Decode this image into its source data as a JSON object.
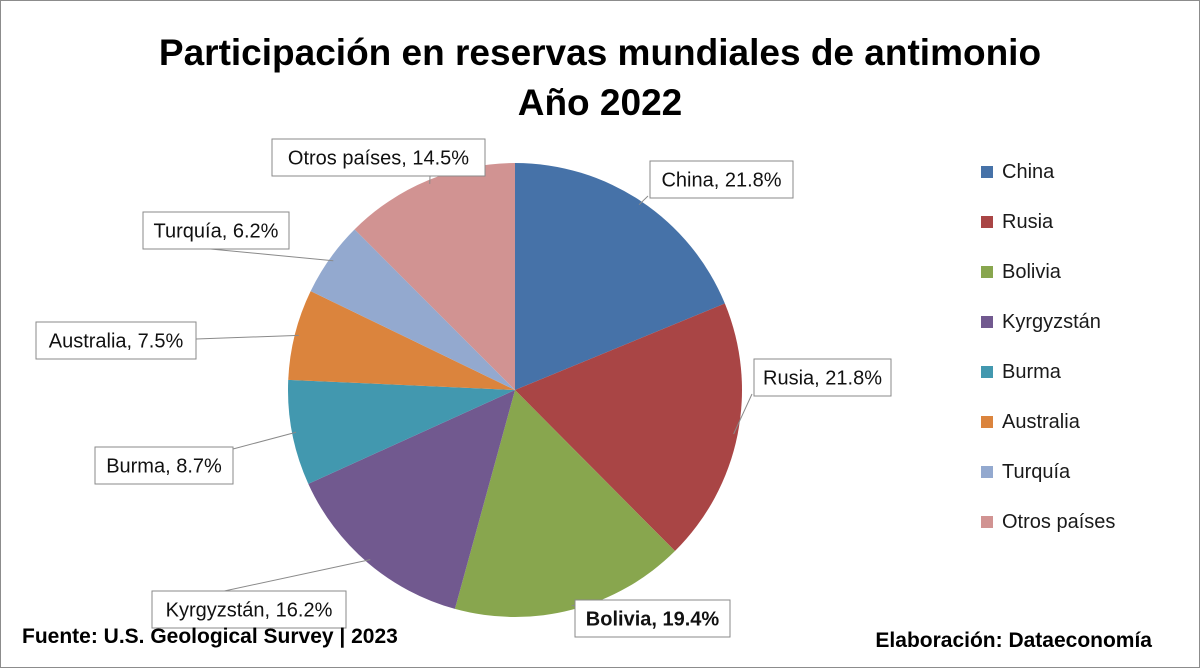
{
  "title_line1": "Participación en reservas mundiales de antimonio",
  "title_line2": "Año 2022",
  "source": "Fuente: U.S. Geological Survey | 2023",
  "credit": "Elaboración: Dataeconomía",
  "chart_data": {
    "type": "pie",
    "title": "Participación en reservas mundiales de antimonio Año 2022",
    "legend_position": "right",
    "slices": [
      {
        "name": "China",
        "value": 21.8,
        "label": "China, 21.8%",
        "color": "#4672A8",
        "bold": false
      },
      {
        "name": "Rusia",
        "value": 21.8,
        "label": "Rusia, 21.8%",
        "color": "#A94545",
        "bold": false
      },
      {
        "name": "Bolivia",
        "value": 19.4,
        "label": "Bolivia, 19.4%",
        "color": "#88A64E",
        "bold": true
      },
      {
        "name": "Kyrgyzstán",
        "value": 16.2,
        "label": "Kyrgyzstán, 16.2%",
        "color": "#71598F",
        "bold": false
      },
      {
        "name": "Burma",
        "value": 8.7,
        "label": "Burma, 8.7%",
        "color": "#4298AF",
        "bold": false
      },
      {
        "name": "Australia",
        "value": 7.5,
        "label": "Australia, 7.5%",
        "color": "#DB843D",
        "bold": false
      },
      {
        "name": "Turquía",
        "value": 6.2,
        "label": "Turquía, 6.2%",
        "color": "#93A9CF",
        "bold": false
      },
      {
        "name": "Otros países",
        "value": 14.5,
        "label": "Otros países, 14.5%",
        "color": "#D19392",
        "bold": false
      }
    ]
  }
}
